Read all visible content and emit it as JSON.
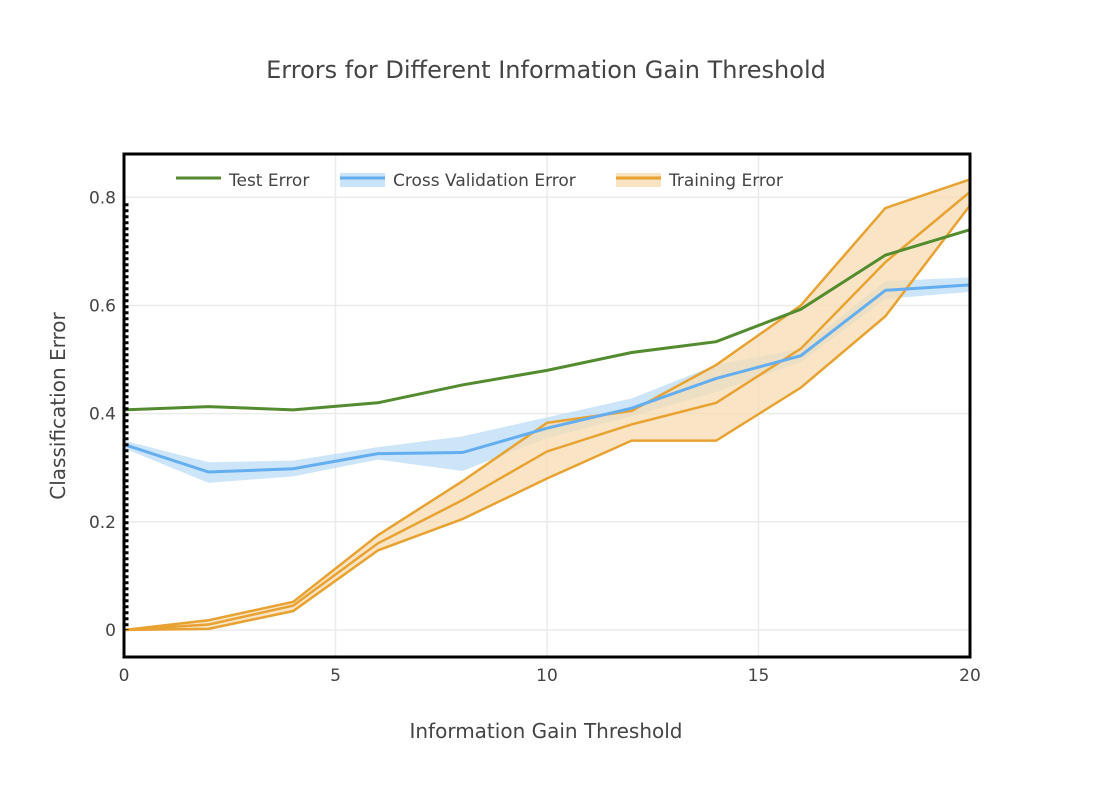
{
  "chart_data": {
    "type": "line",
    "title": "Errors for Different Information Gain Threshold",
    "xlabel": "Information Gain Threshold",
    "ylabel": "Classification Error",
    "xlim": [
      0,
      20
    ],
    "ylim": [
      -0.05,
      0.88
    ],
    "xticks": [
      0,
      5,
      10,
      15,
      20
    ],
    "xtick_labels": [
      "0",
      "5",
      "10",
      "15",
      "20"
    ],
    "yticks": [
      0,
      0.2,
      0.4,
      0.6,
      0.8
    ],
    "ytick_labels": [
      "0",
      "0.2",
      "0.4",
      "0.6",
      "0.8"
    ],
    "grid": true,
    "legend_position": "top-left, horizontal",
    "x": [
      0,
      2,
      4,
      6,
      8,
      10,
      12,
      14,
      16,
      18,
      20
    ],
    "series": [
      {
        "name": "Test Error",
        "color": "#538b2f",
        "values": [
          0.407,
          0.413,
          0.407,
          0.42,
          0.453,
          0.48,
          0.513,
          0.533,
          0.593,
          0.693,
          0.74
        ]
      },
      {
        "name": "Cross Validation Error",
        "color": "#64aef0",
        "band_color": "#bcdcf6",
        "values": [
          0.343,
          0.292,
          0.298,
          0.326,
          0.328,
          0.373,
          0.41,
          0.465,
          0.507,
          0.628,
          0.638
        ],
        "upper": [
          0.35,
          0.31,
          0.313,
          0.338,
          0.358,
          0.393,
          0.428,
          0.49,
          0.52,
          0.645,
          0.652
        ],
        "lower": [
          0.336,
          0.272,
          0.284,
          0.315,
          0.294,
          0.355,
          0.395,
          0.44,
          0.495,
          0.612,
          0.625
        ]
      },
      {
        "name": "Training Error",
        "color": "#e8a231",
        "band_color": "#f7dcb2",
        "values": [
          0,
          0.01,
          0.045,
          0.16,
          0.24,
          0.33,
          0.38,
          0.42,
          0.52,
          0.68,
          0.81
        ],
        "upper": [
          0,
          0.018,
          0.052,
          0.175,
          0.275,
          0.383,
          0.405,
          0.49,
          0.6,
          0.78,
          0.833
        ],
        "lower": [
          0,
          0.002,
          0.035,
          0.147,
          0.205,
          0.28,
          0.35,
          0.35,
          0.448,
          0.58,
          0.785
        ]
      }
    ]
  }
}
